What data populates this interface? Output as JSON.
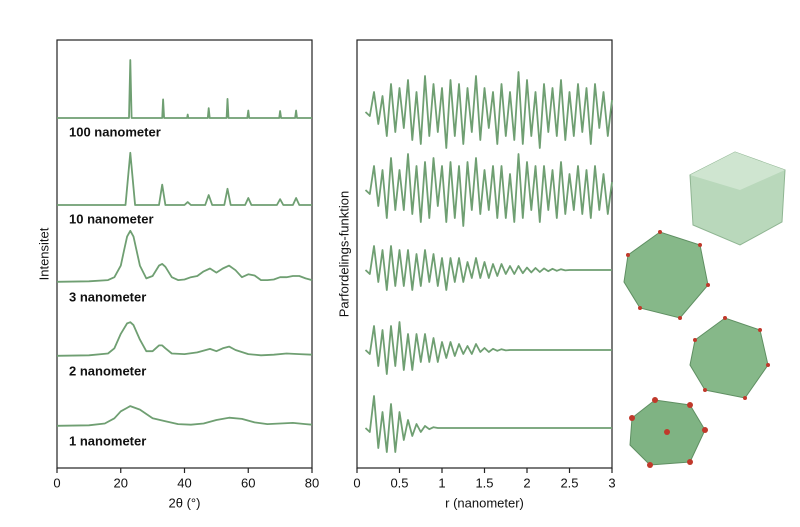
{
  "chart_data": [
    {
      "type": "line",
      "xlabel": "2θ (°)",
      "ylabel": "Intensitet",
      "xlim": [
        0,
        80
      ],
      "xticks": [
        0,
        20,
        40,
        60,
        80
      ],
      "series": [
        {
          "name": "100 nanometer",
          "color": "#6f9f72",
          "x": [
            0,
            22.6,
            23,
            23.4,
            33,
            33.3,
            33.6,
            40.8,
            41,
            41.2,
            47.3,
            47.6,
            47.9,
            53.2,
            53.5,
            53.8,
            59.7,
            60,
            60.3,
            69.7,
            70,
            70.3,
            74.7,
            75,
            75.3,
            80
          ],
          "values": [
            0,
            0,
            1,
            0,
            0,
            0.32,
            0,
            0,
            0.06,
            0,
            0,
            0.17,
            0,
            0,
            0.33,
            0,
            0,
            0.13,
            0,
            0,
            0.12,
            0,
            0,
            0.13,
            0,
            0
          ]
        },
        {
          "name": "10 nanometer",
          "color": "#6f9f72",
          "x": [
            0,
            21.5,
            23,
            24.5,
            32,
            33,
            34,
            40,
            41,
            42,
            46.5,
            47.6,
            48.7,
            52.5,
            53.5,
            54.5,
            59,
            60,
            61,
            69,
            70,
            71,
            74,
            75,
            76,
            80
          ],
          "values": [
            0,
            0,
            0.9,
            0,
            0,
            0.35,
            0,
            0,
            0.05,
            0,
            0,
            0.17,
            0,
            0,
            0.28,
            0,
            0,
            0.12,
            0,
            0,
            0.1,
            0,
            0,
            0.12,
            0,
            0
          ]
        },
        {
          "name": "3 nanometer",
          "color": "#6f9f72",
          "x": [
            0,
            10,
            16,
            18,
            20,
            21,
            22,
            23,
            24,
            25,
            26,
            28,
            30,
            32,
            33,
            34,
            36,
            38,
            40,
            42,
            44,
            46,
            48,
            50,
            52,
            54,
            56,
            58,
            60,
            62,
            64,
            66,
            68,
            70,
            72,
            74,
            76,
            78,
            80
          ],
          "values": [
            0.02,
            0.03,
            0.05,
            0.1,
            0.3,
            0.55,
            0.8,
            0.9,
            0.8,
            0.55,
            0.3,
            0.08,
            0.12,
            0.3,
            0.33,
            0.28,
            0.1,
            0.05,
            0.06,
            0.1,
            0.12,
            0.2,
            0.25,
            0.18,
            0.25,
            0.3,
            0.22,
            0.1,
            0.15,
            0.13,
            0.05,
            0.05,
            0.06,
            0.1,
            0.1,
            0.12,
            0.12,
            0.08,
            0.05
          ]
        },
        {
          "name": "2 nanometer",
          "color": "#6f9f72",
          "x": [
            0,
            10,
            16,
            18,
            20,
            22,
            23,
            24,
            26,
            28,
            30,
            32,
            33,
            34,
            36,
            40,
            44,
            48,
            50,
            52,
            54,
            56,
            60,
            64,
            68,
            72,
            76,
            80
          ],
          "values": [
            0.02,
            0.03,
            0.06,
            0.15,
            0.4,
            0.58,
            0.6,
            0.55,
            0.3,
            0.1,
            0.1,
            0.2,
            0.2,
            0.15,
            0.06,
            0.05,
            0.08,
            0.14,
            0.1,
            0.15,
            0.18,
            0.12,
            0.05,
            0.03,
            0.04,
            0.06,
            0.05,
            0.04
          ]
        },
        {
          "name": "1 nanometer",
          "color": "#6f9f72",
          "x": [
            0,
            10,
            15,
            18,
            20,
            23,
            26,
            30,
            34,
            38,
            42,
            46,
            50,
            54,
            58,
            62,
            66,
            70,
            74,
            78,
            80
          ],
          "values": [
            0.02,
            0.03,
            0.06,
            0.15,
            0.27,
            0.36,
            0.3,
            0.15,
            0.1,
            0.05,
            0.04,
            0.06,
            0.12,
            0.16,
            0.14,
            0.08,
            0.05,
            0.06,
            0.07,
            0.05,
            0.04
          ]
        }
      ]
    },
    {
      "type": "line",
      "xlabel": "r (nanometer)",
      "ylabel": "Parfordelings-funktion",
      "xlim": [
        0,
        3
      ],
      "xticks": [
        0,
        0.5,
        1,
        1.5,
        2,
        2.5,
        3
      ],
      "series": [
        {
          "color": "#6f9f72",
          "x": [
            0.1,
            0.15,
            0.2,
            0.25,
            0.3,
            0.35,
            0.4,
            0.45,
            0.5,
            0.55,
            0.6,
            0.65,
            0.7,
            0.75,
            0.8,
            0.85,
            0.9,
            0.95,
            1,
            1.05,
            1.1,
            1.15,
            1.2,
            1.25,
            1.3,
            1.35,
            1.4,
            1.45,
            1.5,
            1.55,
            1.6,
            1.65,
            1.7,
            1.75,
            1.8,
            1.85,
            1.9,
            1.95,
            2,
            2.05,
            2.1,
            2.15,
            2.2,
            2.25,
            2.3,
            2.35,
            2.4,
            2.45,
            2.5,
            2.55,
            2.6,
            2.65,
            2.7,
            2.75,
            2.8,
            2.85,
            2.9,
            2.95,
            3
          ],
          "values": [
            0,
            -0.1,
            0.5,
            -0.3,
            0.4,
            -0.6,
            0.7,
            -0.5,
            0.6,
            -0.4,
            0.8,
            -0.7,
            0.5,
            -0.8,
            0.9,
            -0.6,
            0.7,
            -0.5,
            0.6,
            -0.9,
            0.8,
            -0.6,
            0.7,
            -0.8,
            0.6,
            -0.5,
            0.9,
            -0.7,
            0.6,
            -0.4,
            0.5,
            -0.8,
            0.7,
            -0.6,
            0.5,
            -0.7,
            1,
            -0.8,
            0.8,
            -0.6,
            0.5,
            -0.9,
            0.7,
            -0.5,
            0.6,
            -0.6,
            0.8,
            -0.7,
            0.5,
            -0.6,
            0.7,
            -0.5,
            0.6,
            -0.8,
            0.7,
            -0.4,
            0.5,
            -0.6,
            0.3
          ]
        },
        {
          "color": "#6f9f72",
          "x": [
            0.1,
            0.15,
            0.2,
            0.25,
            0.3,
            0.35,
            0.4,
            0.45,
            0.5,
            0.55,
            0.6,
            0.65,
            0.7,
            0.75,
            0.8,
            0.85,
            0.9,
            0.95,
            1,
            1.05,
            1.1,
            1.15,
            1.2,
            1.25,
            1.3,
            1.35,
            1.4,
            1.45,
            1.5,
            1.55,
            1.6,
            1.65,
            1.7,
            1.75,
            1.8,
            1.85,
            1.9,
            1.95,
            2,
            2.05,
            2.1,
            2.15,
            2.2,
            2.25,
            2.3,
            2.35,
            2.4,
            2.45,
            2.5,
            2.55,
            2.6,
            2.65,
            2.7,
            2.75,
            2.8,
            2.85,
            2.9,
            2.95,
            3
          ],
          "values": [
            0,
            -0.1,
            0.6,
            -0.4,
            0.5,
            -0.7,
            0.8,
            -0.5,
            0.5,
            -0.5,
            0.9,
            -0.6,
            0.6,
            -0.8,
            0.7,
            -0.7,
            0.8,
            -0.4,
            0.6,
            -0.8,
            0.7,
            -0.7,
            0.6,
            -0.9,
            0.7,
            -0.5,
            0.8,
            -0.6,
            0.5,
            -0.5,
            0.6,
            -0.7,
            0.6,
            -0.7,
            0.4,
            -0.8,
            0.9,
            -0.7,
            0.7,
            -0.5,
            0.6,
            -0.8,
            0.6,
            -0.5,
            0.5,
            -0.7,
            0.7,
            -0.6,
            0.4,
            -0.5,
            0.6,
            -0.6,
            0.5,
            -0.7,
            0.6,
            -0.5,
            0.4,
            -0.6,
            0.2
          ]
        },
        {
          "color": "#6f9f72",
          "x": [
            0.1,
            0.15,
            0.2,
            0.25,
            0.3,
            0.35,
            0.4,
            0.45,
            0.5,
            0.55,
            0.6,
            0.65,
            0.7,
            0.75,
            0.8,
            0.85,
            0.9,
            0.95,
            1,
            1.05,
            1.1,
            1.15,
            1.2,
            1.25,
            1.3,
            1.35,
            1.4,
            1.45,
            1.5,
            1.55,
            1.6,
            1.65,
            1.7,
            1.75,
            1.8,
            1.85,
            1.9,
            1.95,
            2,
            2.05,
            2.1,
            2.15,
            2.2,
            2.25,
            2.3,
            2.35,
            2.4,
            2.45,
            2.5,
            3
          ],
          "values": [
            0,
            -0.1,
            0.6,
            -0.3,
            0.5,
            -0.5,
            0.6,
            -0.4,
            0.5,
            -0.4,
            0.5,
            -0.5,
            0.4,
            -0.4,
            0.5,
            -0.3,
            0.4,
            -0.4,
            0.3,
            -0.5,
            0.3,
            -0.3,
            0.3,
            -0.3,
            0.2,
            -0.2,
            0.3,
            -0.2,
            0.2,
            -0.2,
            0.15,
            -0.15,
            0.15,
            -0.1,
            0.1,
            -0.1,
            0.1,
            -0.08,
            0.06,
            -0.06,
            0.05,
            -0.05,
            0.04,
            -0.03,
            0.03,
            -0.02,
            0.02,
            -0.01,
            0,
            0
          ]
        },
        {
          "color": "#6f9f72",
          "x": [
            0.1,
            0.15,
            0.2,
            0.25,
            0.3,
            0.35,
            0.4,
            0.45,
            0.5,
            0.55,
            0.6,
            0.65,
            0.7,
            0.75,
            0.8,
            0.85,
            0.9,
            0.95,
            1,
            1.05,
            1.1,
            1.15,
            1.2,
            1.25,
            1.3,
            1.35,
            1.4,
            1.45,
            1.5,
            1.55,
            1.6,
            1.65,
            1.7,
            1.75,
            1.8,
            3
          ],
          "values": [
            0,
            -0.1,
            0.6,
            -0.4,
            0.5,
            -0.6,
            0.6,
            -0.4,
            0.7,
            -0.5,
            0.4,
            -0.5,
            0.4,
            -0.3,
            0.4,
            -0.3,
            0.3,
            -0.3,
            0.2,
            -0.2,
            0.2,
            -0.15,
            0.15,
            -0.1,
            0.1,
            -0.1,
            0.15,
            -0.05,
            0.05,
            -0.05,
            0.03,
            -0.02,
            0.02,
            -0.01,
            0,
            0
          ]
        },
        {
          "color": "#6f9f72",
          "x": [
            0.1,
            0.15,
            0.2,
            0.25,
            0.3,
            0.35,
            0.4,
            0.45,
            0.5,
            0.55,
            0.6,
            0.65,
            0.7,
            0.75,
            0.8,
            0.85,
            0.9,
            0.95,
            1,
            3
          ],
          "values": [
            0,
            -0.1,
            0.8,
            -0.5,
            0.4,
            -0.6,
            0.6,
            -0.6,
            0.4,
            -0.3,
            0.2,
            -0.2,
            0.1,
            -0.1,
            0.05,
            -0.03,
            0.02,
            0,
            0,
            0
          ]
        }
      ]
    }
  ]
}
